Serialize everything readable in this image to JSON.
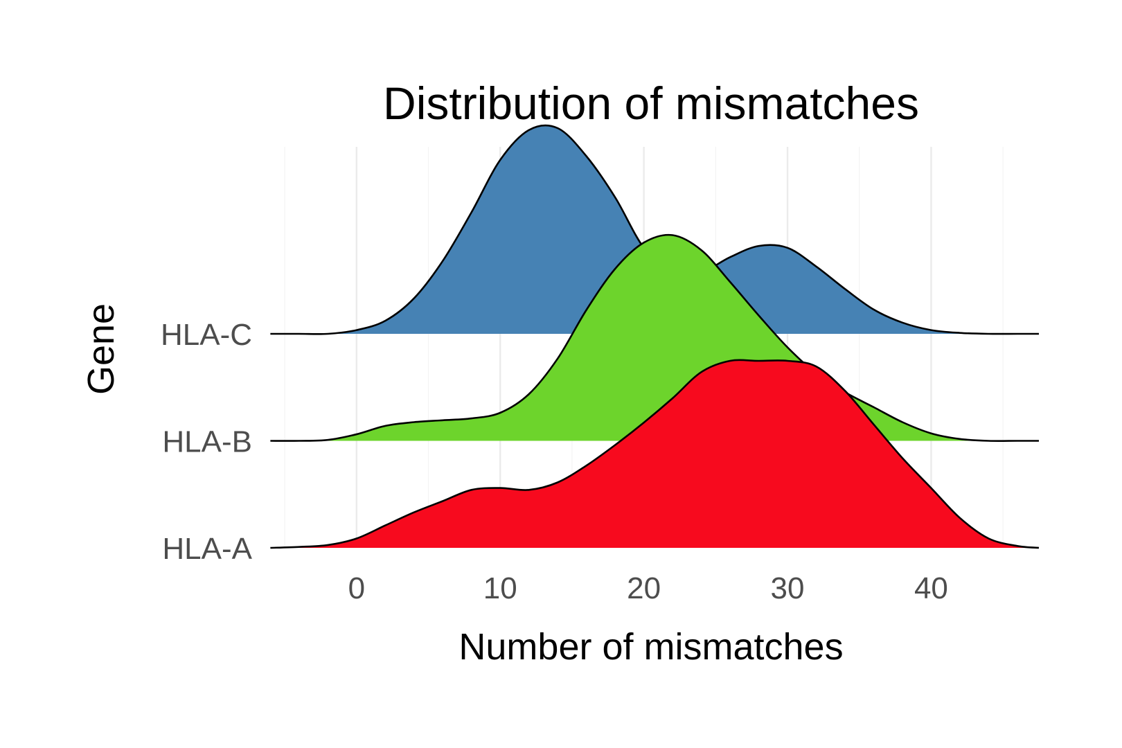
{
  "chart_data": {
    "type": "ridgeline",
    "title": "Distribution of mismatches",
    "xlabel": "Number of mismatches",
    "ylabel": "Gene",
    "xlim": [
      -6.5,
      47.5
    ],
    "x_ticks": [
      0,
      10,
      20,
      30,
      40
    ],
    "grid": true,
    "legend": "none",
    "categories": [
      "HLA-A",
      "HLA-B",
      "HLA-C"
    ],
    "x": [
      -6,
      -4,
      -2,
      0,
      2,
      4,
      6,
      8,
      10,
      12,
      14,
      16,
      18,
      20,
      22,
      24,
      26,
      28,
      30,
      32,
      34,
      36,
      38,
      40,
      42,
      44,
      46,
      47.5
    ],
    "series": [
      {
        "name": "HLA-A",
        "color": "#f70a1e",
        "values": [
          0.0,
          0.005,
          0.015,
          0.05,
          0.12,
          0.19,
          0.25,
          0.31,
          0.32,
          0.31,
          0.35,
          0.44,
          0.55,
          0.67,
          0.8,
          0.94,
          1.0,
          1.0,
          1.0,
          0.97,
          0.84,
          0.66,
          0.48,
          0.32,
          0.16,
          0.05,
          0.01,
          0.0
        ]
      },
      {
        "name": "HLA-B",
        "color": "#6dd42c",
        "values": [
          0.0,
          0.0,
          0.005,
          0.035,
          0.08,
          0.1,
          0.11,
          0.12,
          0.15,
          0.25,
          0.44,
          0.7,
          0.92,
          1.06,
          1.1,
          1.02,
          0.85,
          0.67,
          0.5,
          0.36,
          0.26,
          0.18,
          0.1,
          0.04,
          0.01,
          0.0,
          0.0,
          0.0
        ]
      },
      {
        "name": "HLA-C",
        "color": "#4682b4",
        "values": [
          0.0,
          0.0,
          0.0,
          0.02,
          0.07,
          0.19,
          0.39,
          0.65,
          0.93,
          1.09,
          1.1,
          0.95,
          0.73,
          0.46,
          0.33,
          0.33,
          0.41,
          0.47,
          0.46,
          0.36,
          0.24,
          0.13,
          0.06,
          0.02,
          0.005,
          0.0,
          0.0,
          0.0
        ]
      }
    ]
  }
}
